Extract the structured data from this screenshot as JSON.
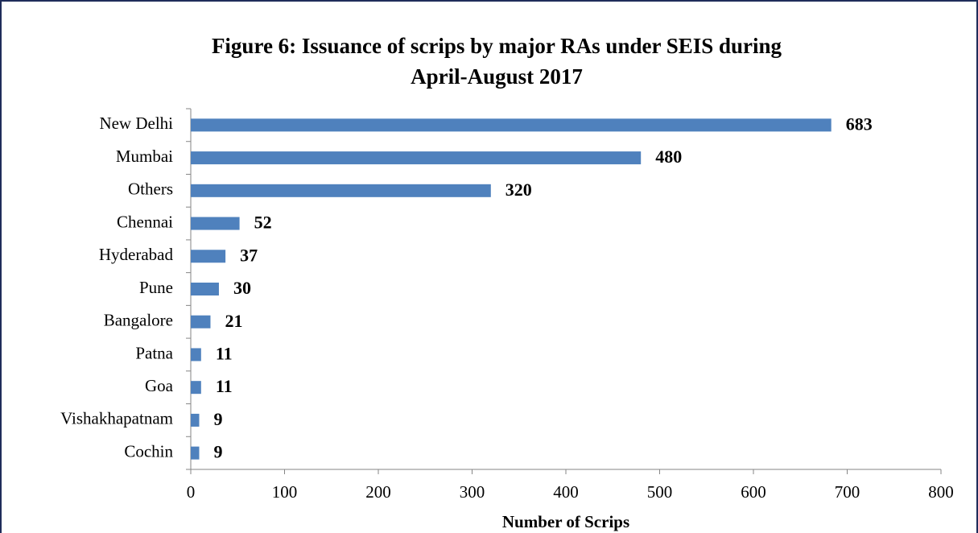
{
  "chart_data": {
    "type": "bar",
    "orientation": "horizontal",
    "title": "Figure 6: Issuance of scrips by major RAs under SEIS during April-August 2017",
    "x_label": "Number of Scrips",
    "categories": [
      "New Delhi",
      "Mumbai",
      "Others",
      "Chennai",
      "Hyderabad",
      "Pune",
      "Bangalore",
      "Patna",
      "Goa",
      "Vishakhapatnam",
      "Cochin"
    ],
    "values": [
      683,
      480,
      320,
      52,
      37,
      30,
      21,
      11,
      11,
      9,
      9
    ],
    "color": "#4f81bd",
    "xlim": [
      0,
      800
    ],
    "xticks": [
      0,
      100,
      200,
      300,
      400,
      500,
      600,
      700,
      800
    ],
    "grid": false
  }
}
